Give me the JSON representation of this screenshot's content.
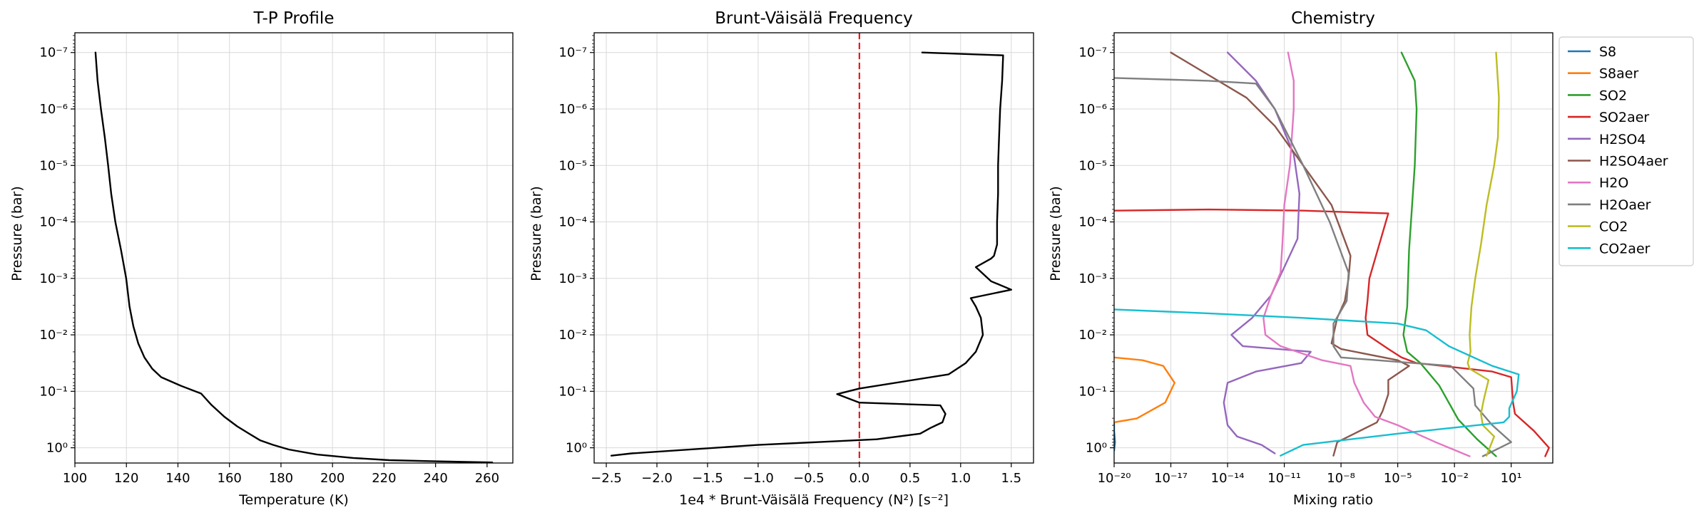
{
  "chart_data": [
    {
      "type": "line",
      "title": "T-P Profile",
      "xlabel": "Temperature (K)",
      "ylabel": "Pressure (bar)",
      "xlim": [
        100,
        270
      ],
      "xticks": [
        100,
        120,
        140,
        160,
        180,
        200,
        220,
        240,
        260
      ],
      "xtick_labels": [
        "100",
        "120",
        "140",
        "160",
        "180",
        "200",
        "220",
        "240",
        "260"
      ],
      "ylim_log10": [
        -7.35,
        0.27
      ],
      "y_inverted": true,
      "y_scale": "log",
      "yticks_exp": [
        -7,
        -6,
        -5,
        -4,
        -3,
        -2,
        -1,
        0
      ],
      "ytick_labels": [
        "10⁻⁷",
        "10⁻⁶",
        "10⁻⁵",
        "10⁻⁴",
        "10⁻³",
        "10⁻²",
        "10⁻¹",
        "10⁰"
      ],
      "grid": true,
      "series": [
        {
          "color": "#000000",
          "x": [
            108,
            108.8,
            110.1,
            111.6,
            112.9,
            114.1,
            115.7,
            117.9,
            119.9,
            121.2,
            122.7,
            124.6,
            127,
            130,
            133.5,
            141,
            149,
            153,
            158,
            163,
            168,
            172,
            177,
            183,
            194,
            208,
            222,
            240,
            262
          ],
          "logp": [
            -7,
            -6.5,
            -6,
            -5.5,
            -5,
            -4.5,
            -4,
            -3.5,
            -3,
            -2.5,
            -2.15,
            -1.85,
            -1.6,
            -1.4,
            -1.25,
            -1.1,
            -0.96,
            -0.76,
            -0.55,
            -0.38,
            -0.24,
            -0.13,
            -0.05,
            0.03,
            0.12,
            0.18,
            0.22,
            0.24,
            0.26
          ]
        }
      ]
    },
    {
      "type": "line",
      "title": "Brunt-Väisälä Frequency",
      "xlabel": "1e4 * Brunt-Väisälä Frequency (N²) [s⁻²]",
      "ylabel": "Pressure (bar)",
      "xlim": [
        -2.62,
        1.72
      ],
      "xticks": [
        -2.5,
        -2.0,
        -1.5,
        -1.0,
        -0.5,
        0.0,
        0.5,
        1.0,
        1.5
      ],
      "xtick_labels": [
        "−2.5",
        "−2.0",
        "−1.5",
        "−1.0",
        "−0.5",
        "0.0",
        "0.5",
        "1.0",
        "1.5"
      ],
      "ylim_log10": [
        -7.35,
        0.27
      ],
      "y_inverted": true,
      "y_scale": "log",
      "yticks_exp": [
        -7,
        -6,
        -5,
        -4,
        -3,
        -2,
        -1,
        0
      ],
      "ytick_labels": [
        "10⁻⁷",
        "10⁻⁶",
        "10⁻⁵",
        "10⁻⁴",
        "10⁻³",
        "10⁻²",
        "10⁻¹",
        "10⁰"
      ],
      "grid": true,
      "vline": {
        "x": 0.0,
        "color": "#e41a1c",
        "style": "dashed"
      },
      "series": [
        {
          "color": "#000000",
          "x": [
            0.62,
            1.42,
            1.41,
            1.39,
            1.38,
            1.37,
            1.37,
            1.36,
            1.36,
            1.33,
            1.3,
            1.15,
            1.3,
            1.5,
            1.1,
            1.15,
            1.2,
            1.22,
            1.15,
            1.05,
            0.88,
            0.0,
            -0.22,
            0.0,
            0.8,
            0.85,
            0.82,
            0.76,
            0.7,
            0.6,
            0.17,
            -1.0,
            -2.25,
            -2.45
          ],
          "logp": [
            -7,
            -6.95,
            -6.5,
            -6,
            -5.5,
            -5,
            -4.5,
            -4,
            -3.6,
            -3.4,
            -3.35,
            -3.2,
            -2.95,
            -2.8,
            -2.65,
            -2.5,
            -2.3,
            -2,
            -1.7,
            -1.5,
            -1.3,
            -1.05,
            -0.95,
            -0.8,
            -0.75,
            -0.6,
            -0.45,
            -0.4,
            -0.35,
            -0.25,
            -0.15,
            -0.05,
            0.1,
            0.14
          ]
        }
      ]
    },
    {
      "type": "line",
      "title": "Chemistry",
      "xlabel": "Mixing ratio",
      "ylabel": "Pressure (bar)",
      "x_scale": "log",
      "xlim_log10": [
        -20,
        3.2
      ],
      "xticks_exp": [
        -20,
        -17,
        -14,
        -11,
        -8,
        -5,
        -2,
        1
      ],
      "xtick_labels": [
        "10⁻²⁰",
        "10⁻¹⁷",
        "10⁻¹⁴",
        "10⁻¹¹",
        "10⁻⁸",
        "10⁻⁵",
        "10⁻²",
        "10¹"
      ],
      "ylim_log10": [
        -7.35,
        0.27
      ],
      "y_inverted": true,
      "y_scale": "log",
      "yticks_exp": [
        -7,
        -6,
        -5,
        -4,
        -3,
        -2,
        -1,
        0
      ],
      "ytick_labels": [
        "10⁻⁷",
        "10⁻⁶",
        "10⁻⁵",
        "10⁻⁴",
        "10⁻³",
        "10⁻²",
        "10⁻¹",
        "10⁰"
      ],
      "grid": true,
      "legend_position": "outside-right",
      "series": [
        {
          "name": "S8",
          "color": "#1f77b4",
          "logx": [
            -20,
            -20,
            -19.95,
            -20
          ],
          "logp": [
            -0.45,
            -0.3,
            -0.1,
            0.05
          ]
        },
        {
          "name": "S8aer",
          "color": "#ff7f0e",
          "logx": [
            -20,
            -18.5,
            -17.4,
            -16.8,
            -17.3,
            -18.8,
            -20
          ],
          "logp": [
            -1.6,
            -1.55,
            -1.45,
            -1.15,
            -0.8,
            -0.52,
            -0.45
          ]
        },
        {
          "name": "SO2",
          "color": "#2ca02c",
          "logx": [
            -4.8,
            -4.1,
            -4,
            -4.1,
            -4.3,
            -4.4,
            -4.45,
            -4.5,
            -4.7,
            -4.5,
            -3.8,
            -2.8,
            -1.8,
            -0.8,
            0.2
          ],
          "logp": [
            -7,
            -6.5,
            -6,
            -5,
            -4,
            -3.5,
            -3,
            -2.5,
            -2,
            -1.7,
            -1.5,
            -1.1,
            -0.5,
            -0.15,
            0.15
          ]
        },
        {
          "name": "SO2aer",
          "color": "#d62728",
          "logx": [
            -20,
            -15,
            -10,
            -5.5,
            -6.5,
            -6.6,
            -6.7,
            -6.6,
            -5.5,
            -4.8,
            -4,
            0,
            1.0,
            1.1,
            1.2,
            2.2,
            3,
            2.8
          ],
          "logp": [
            -4.2,
            -4.22,
            -4.2,
            -4.15,
            -3.0,
            -2.6,
            -2.3,
            -2.0,
            -1.75,
            -1.6,
            -1.5,
            -1.35,
            -1.25,
            -0.8,
            -0.6,
            -0.3,
            0,
            0.15
          ]
        },
        {
          "name": "H2SO4",
          "color": "#9467bd",
          "logx": [
            -14,
            -12.5,
            -11.5,
            -10.5,
            -10.2,
            -10.3,
            -11,
            -11.7,
            -12.7,
            -13.8,
            -13.2,
            -9.6,
            -10.1,
            -12.5,
            -14,
            -14.2,
            -14,
            -13.5,
            -12.2,
            -11.5
          ],
          "logp": [
            -7,
            -6.5,
            -6,
            -5.2,
            -4.5,
            -3.7,
            -3.2,
            -2.7,
            -2.3,
            -2.0,
            -1.8,
            -1.7,
            -1.5,
            -1.35,
            -1.15,
            -0.8,
            -0.4,
            -0.2,
            -0.05,
            0.1
          ]
        },
        {
          "name": "H2SO4aer",
          "color": "#8c564b",
          "logx": [
            -17,
            -15.5,
            -13,
            -11.5,
            -10,
            -8.5,
            -7.5,
            -7.6,
            -7.8,
            -8.2,
            -8.4,
            -8.5,
            -8.0,
            -5.0,
            -4.4,
            -5.5,
            -5.5,
            -5.8,
            -6.1,
            -7.3,
            -8.2,
            -8.4
          ],
          "logp": [
            -7,
            -6.7,
            -6.2,
            -5.7,
            -5,
            -4.3,
            -3.4,
            -3.0,
            -2.6,
            -2.3,
            -2.0,
            -1.85,
            -1.75,
            -1.55,
            -1.45,
            -1.2,
            -0.95,
            -0.65,
            -0.45,
            -0.25,
            -0.1,
            0.14
          ]
        },
        {
          "name": "H2O",
          "color": "#e377c2",
          "logx": [
            -10.8,
            -10.5,
            -10.5,
            -10.7,
            -11,
            -11.1,
            -11.2,
            -11.7,
            -12.1,
            -12,
            -11.2,
            -9,
            -7.5,
            -7.3,
            -6.8,
            -6.2,
            -5,
            -3,
            -1.2
          ],
          "logp": [
            -7,
            -6.5,
            -6,
            -5,
            -4.3,
            -3.6,
            -3.1,
            -2.7,
            -2.3,
            -2.0,
            -1.8,
            -1.55,
            -1.45,
            -1.15,
            -0.8,
            -0.55,
            -0.4,
            -0.1,
            0.15
          ]
        },
        {
          "name": "H2Oaer",
          "color": "#7f7f7f",
          "logx": [
            -20,
            -15,
            -12.5,
            -11.5,
            -10,
            -8.6,
            -7.6,
            -7.7,
            -8.4,
            -8.4,
            -8.4,
            -8,
            -2.2,
            -1.0,
            -0.9,
            0,
            1.0,
            -0.5
          ],
          "logp": [
            -6.55,
            -6.5,
            -6.45,
            -6.0,
            -5.0,
            -4.0,
            -3.1,
            -2.6,
            -2.2,
            -2.0,
            -1.8,
            -1.6,
            -1.45,
            -1.05,
            -0.75,
            -0.4,
            -0.1,
            0.15
          ]
        },
        {
          "name": "CO2",
          "color": "#bcbd22",
          "logx": [
            0.2,
            0.35,
            0.3,
            0.1,
            -0.3,
            -0.6,
            -0.9,
            -1.1,
            -1.2,
            -1.15,
            -1.3,
            -1.2,
            -0.2,
            -0.45,
            -0.6,
            -0.5,
            0.1,
            -0.3
          ],
          "logp": [
            -7,
            -6.2,
            -5.5,
            -5,
            -4.3,
            -3.6,
            -3,
            -2.5,
            -2.0,
            -1.7,
            -1.5,
            -1.4,
            -1.2,
            -0.85,
            -0.6,
            -0.4,
            -0.2,
            0.14
          ]
        },
        {
          "name": "CO2aer",
          "color": "#17becf",
          "logx": [
            -20,
            -15,
            -10,
            -5,
            -3.5,
            -2.3,
            0,
            1.4,
            1.3,
            0.9,
            0.9,
            0.6,
            -5,
            -10,
            -11.2
          ],
          "logp": [
            -2.45,
            -2.38,
            -2.3,
            -2.2,
            -2.08,
            -1.8,
            -1.45,
            -1.3,
            -1.0,
            -0.7,
            -0.55,
            -0.45,
            -0.25,
            -0.05,
            0.14
          ]
        }
      ]
    }
  ]
}
